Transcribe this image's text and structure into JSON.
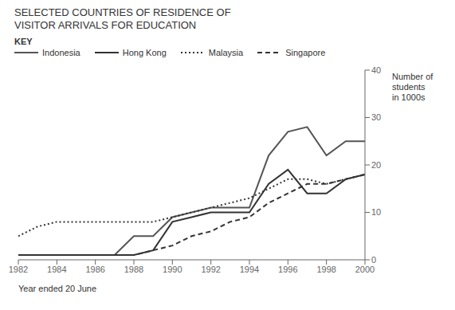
{
  "chart_data": {
    "type": "line",
    "title": "SELECTED COUNTRIES OF RESIDENCE OF",
    "subtitle": "VISITOR ARRIVALS FOR EDUCATION",
    "x_label": "Year ended 20 June",
    "y_label": "Number of\nstudents\nin 1000s",
    "legend_title": "KEY",
    "legend": "upper left",
    "grid": false,
    "x": [
      1982,
      1983,
      1984,
      1985,
      1986,
      1987,
      1988,
      1989,
      1990,
      1991,
      1992,
      1993,
      1994,
      1995,
      1996,
      1997,
      1998,
      1999,
      2000
    ],
    "xlim": [
      1982,
      2000
    ],
    "xticks": [
      1982,
      1984,
      1986,
      1988,
      1990,
      1992,
      1994,
      1996,
      1998,
      2000
    ],
    "ylim": [
      0,
      40
    ],
    "yticks": [
      0,
      10,
      20,
      30,
      40
    ],
    "series": [
      {
        "name": "Indonesia",
        "color": "#555555",
        "line_style": "solid",
        "values": [
          1,
          1,
          1,
          1,
          1,
          1,
          5,
          5,
          9,
          10,
          11,
          11,
          11,
          22,
          27,
          28,
          22,
          25,
          25
        ]
      },
      {
        "name": "Hong Kong",
        "color": "#333333",
        "line_style": "solid",
        "values": [
          1,
          1,
          1,
          1,
          1,
          1,
          1,
          2,
          8,
          9,
          10,
          10,
          10,
          16,
          19,
          14,
          14,
          17,
          18
        ]
      },
      {
        "name": "Malaysia",
        "color": "#333333",
        "line_style": "dotted",
        "values": [
          5,
          7,
          8,
          8,
          8,
          8,
          8,
          8,
          9,
          10,
          11,
          12,
          13,
          15,
          17,
          17,
          16,
          17,
          18
        ]
      },
      {
        "name": "Singapore",
        "color": "#333333",
        "line_style": "dashed",
        "values": [
          1,
          1,
          1,
          1,
          1,
          1,
          1,
          2,
          3,
          5,
          6,
          8,
          9,
          12,
          14,
          16,
          16,
          17,
          18
        ]
      }
    ]
  }
}
